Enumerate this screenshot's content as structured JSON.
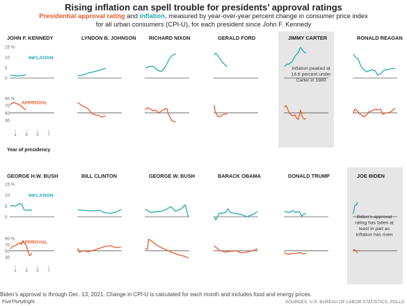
{
  "title": "Rising inflation can spell trouble for presidents’ approval ratings",
  "subtitle": {
    "approval_word": "Presidential approval rating",
    "and_word": " and ",
    "inflation_word": "inflation",
    "rest": ", measured by year-over-year percent change in consumer price index for all urban consumers (CPI-U), for each president since John F. Kennedy"
  },
  "labels": {
    "inflation": "INFLATION",
    "approval": "APPROVAL",
    "year_of_presidency": "Year of presidency",
    "carter_annotation": "Inflation peaked at 14.6 percent under Carter in 1980",
    "biden_annotation": "Biden’s approval rating has fallen at least in part as inflation has risen"
  },
  "footnote": "Biden’s approval is through Dec. 13, 2021. Change in CPI-U is calculated for each month and includes food and energy prices.",
  "source": "SOURCES: U.S. BUREAU OF LABOR STATISTICS, POLLS",
  "brand": "FiveThirtyEight",
  "colors": {
    "inflation": "#21a7b3",
    "approval": "#e8582b",
    "highlight": "#e6e6e6",
    "axis": "#555555"
  },
  "chart_data": {
    "type": "line",
    "inflation_axis": {
      "ticks": [
        0,
        5,
        10,
        15
      ],
      "tick_labels": [
        "0",
        "5",
        "10",
        "15 %"
      ],
      "ylim": [
        0,
        15
      ]
    },
    "approval_axis": {
      "ticks": [
        30,
        50,
        70,
        90
      ],
      "tick_labels": [
        "30",
        "50",
        "70",
        "90 %"
      ],
      "ylim": [
        25,
        92
      ],
      "reference_line": 50
    },
    "x_axis": {
      "ticks": [
        1,
        3,
        5,
        7
      ],
      "tick_labels": [
        "1",
        "3",
        "5",
        "7"
      ],
      "xlim": [
        0,
        8
      ],
      "label": "Year of presidency"
    },
    "presidents": [
      {
        "name": "JOHN F. KENNEDY",
        "highlight": false,
        "inflation": [
          [
            0.1,
            1.5
          ],
          [
            0.5,
            1.2
          ],
          [
            1,
            1.1
          ],
          [
            1.5,
            1.0
          ],
          [
            2,
            1.3
          ],
          [
            2.5,
            1.2
          ],
          [
            2.9,
            1.6
          ]
        ],
        "approval": [
          [
            0.1,
            72
          ],
          [
            0.4,
            77
          ],
          [
            0.8,
            78
          ],
          [
            1.2,
            76
          ],
          [
            1.6,
            73
          ],
          [
            2,
            70
          ],
          [
            2.4,
            64
          ],
          [
            2.7,
            60
          ],
          [
            2.9,
            58
          ]
        ]
      },
      {
        "name": "LYNDON B. JOHNSON",
        "highlight": false,
        "inflation": [
          [
            0.1,
            1.2
          ],
          [
            0.8,
            1.3
          ],
          [
            1.5,
            1.9
          ],
          [
            2.2,
            2.6
          ],
          [
            3,
            3.0
          ],
          [
            3.8,
            3.6
          ],
          [
            4.5,
            4.2
          ],
          [
            5.1,
            4.7
          ]
        ],
        "approval": [
          [
            0.1,
            78
          ],
          [
            0.5,
            74
          ],
          [
            1,
            68
          ],
          [
            1.5,
            66
          ],
          [
            2,
            60
          ],
          [
            2.5,
            50
          ],
          [
            3,
            46
          ],
          [
            3.5,
            44
          ],
          [
            4,
            42
          ],
          [
            4.5,
            38
          ],
          [
            4.8,
            40
          ],
          [
            5.1,
            42
          ]
        ]
      },
      {
        "name": "RICHARD NIXON",
        "highlight": false,
        "inflation": [
          [
            0.1,
            4.8
          ],
          [
            0.8,
            5.5
          ],
          [
            1.5,
            5.6
          ],
          [
            2,
            4.5
          ],
          [
            2.5,
            3.5
          ],
          [
            3,
            3.2
          ],
          [
            3.5,
            4.5
          ],
          [
            4,
            7
          ],
          [
            4.5,
            9.5
          ],
          [
            5,
            11
          ],
          [
            5.6,
            11.5
          ]
        ],
        "approval": [
          [
            0.1,
            59
          ],
          [
            0.5,
            64
          ],
          [
            1,
            61
          ],
          [
            1.5,
            56
          ],
          [
            2,
            57
          ],
          [
            2.5,
            50
          ],
          [
            3,
            55
          ],
          [
            3.5,
            60
          ],
          [
            4,
            62
          ],
          [
            4.2,
            48
          ],
          [
            4.5,
            40
          ],
          [
            4.8,
            30
          ],
          [
            5.2,
            26
          ],
          [
            5.6,
            25
          ]
        ]
      },
      {
        "name": "GERALD FORD",
        "highlight": false,
        "inflation": [
          [
            0.1,
            11
          ],
          [
            0.4,
            12
          ],
          [
            0.8,
            10.5
          ],
          [
            1.2,
            9
          ],
          [
            1.6,
            7.5
          ],
          [
            2,
            6.5
          ],
          [
            2.4,
            5.5
          ]
        ],
        "approval": [
          [
            0.1,
            71
          ],
          [
            0.3,
            52
          ],
          [
            0.5,
            48
          ],
          [
            0.8,
            40
          ],
          [
            1.2,
            40
          ],
          [
            1.6,
            45
          ],
          [
            2,
            46
          ],
          [
            2.4,
            48
          ]
        ]
      },
      {
        "name": "JIMMY CARTER",
        "highlight": true,
        "inflation": [
          [
            0.1,
            5.5
          ],
          [
            0.5,
            6.5
          ],
          [
            1,
            6.8
          ],
          [
            1.5,
            8
          ],
          [
            2,
            10.5
          ],
          [
            2.5,
            12
          ],
          [
            3,
            14.6
          ],
          [
            3.3,
            13.5
          ],
          [
            3.6,
            12.5
          ],
          [
            4,
            12
          ]
        ],
        "approval": [
          [
            0.1,
            66
          ],
          [
            0.4,
            70
          ],
          [
            0.7,
            60
          ],
          [
            1,
            50
          ],
          [
            1.3,
            44
          ],
          [
            1.6,
            42
          ],
          [
            2,
            45
          ],
          [
            2.3,
            35
          ],
          [
            2.6,
            32
          ],
          [
            3,
            58
          ],
          [
            3.3,
            40
          ],
          [
            3.6,
            33
          ],
          [
            4,
            34
          ]
        ]
      },
      {
        "name": "RONALD REAGAN",
        "highlight": false,
        "inflation": [
          [
            0.1,
            11.5
          ],
          [
            0.5,
            10
          ],
          [
            1,
            9
          ],
          [
            1.5,
            5.5
          ],
          [
            2,
            4
          ],
          [
            2.5,
            3
          ],
          [
            3,
            3.5
          ],
          [
            3.5,
            4
          ],
          [
            4,
            3.5
          ],
          [
            4.5,
            1.5
          ],
          [
            5,
            2
          ],
          [
            5.5,
            3.5
          ],
          [
            6,
            4
          ],
          [
            6.5,
            4.2
          ],
          [
            7,
            4.5
          ],
          [
            7.6,
            4.6
          ]
        ],
        "approval": [
          [
            0.1,
            51
          ],
          [
            0.4,
            60
          ],
          [
            0.8,
            56
          ],
          [
            1.2,
            48
          ],
          [
            1.6,
            44
          ],
          [
            2,
            39
          ],
          [
            2.4,
            44
          ],
          [
            2.8,
            52
          ],
          [
            3.2,
            54
          ],
          [
            3.6,
            57
          ],
          [
            4,
            60
          ],
          [
            4.4,
            58
          ],
          [
            5,
            60
          ],
          [
            5.4,
            46
          ],
          [
            6,
            50
          ],
          [
            6.6,
            51
          ],
          [
            7.1,
            56
          ],
          [
            7.6,
            63
          ]
        ]
      },
      {
        "name": "GEORGE H.W. BUSH",
        "highlight": false,
        "inflation": [
          [
            0.1,
            4.8
          ],
          [
            0.5,
            5.2
          ],
          [
            1,
            4.8
          ],
          [
            1.4,
            5.5
          ],
          [
            1.8,
            6.1
          ],
          [
            2.2,
            5.5
          ],
          [
            2.6,
            3.2
          ],
          [
            3,
            3.0
          ],
          [
            3.5,
            3.1
          ],
          [
            4,
            3.0
          ]
        ],
        "approval": [
          [
            0.1,
            56
          ],
          [
            0.5,
            64
          ],
          [
            1,
            67
          ],
          [
            1.5,
            72
          ],
          [
            1.9,
            76
          ],
          [
            2.1,
            70
          ],
          [
            2.3,
            82
          ],
          [
            2.6,
            76
          ],
          [
            3,
            65
          ],
          [
            3.3,
            46
          ],
          [
            3.6,
            34
          ],
          [
            3.9,
            40
          ],
          [
            4,
            42
          ]
        ]
      },
      {
        "name": "BILL CLINTON",
        "highlight": false,
        "inflation": [
          [
            0.1,
            3.2
          ],
          [
            1,
            3.0
          ],
          [
            2,
            2.7
          ],
          [
            3,
            2.7
          ],
          [
            4,
            3.0
          ],
          [
            5,
            1.8
          ],
          [
            6,
            1.6
          ],
          [
            7,
            2.2
          ],
          [
            7.9,
            3.4
          ]
        ],
        "approval": [
          [
            0.1,
            58
          ],
          [
            0.4,
            45
          ],
          [
            1,
            50
          ],
          [
            2,
            47
          ],
          [
            3,
            52
          ],
          [
            4,
            58
          ],
          [
            5,
            64
          ],
          [
            6,
            66
          ],
          [
            7,
            60
          ],
          [
            7.9,
            62
          ]
        ]
      },
      {
        "name": "GEORGE W. BUSH",
        "highlight": false,
        "inflation": [
          [
            0.1,
            3.5
          ],
          [
            1,
            2.0
          ],
          [
            2,
            2.3
          ],
          [
            3,
            2.5
          ],
          [
            4,
            3.5
          ],
          [
            4.7,
            4.7
          ],
          [
            5.5,
            2.5
          ],
          [
            6.5,
            3.5
          ],
          [
            7.3,
            5.5
          ],
          [
            7.7,
            1.0
          ],
          [
            7.9,
            0.1
          ]
        ],
        "approval": [
          [
            0.1,
            57
          ],
          [
            0.5,
            55
          ],
          [
            0.7,
            87
          ],
          [
            1,
            84
          ],
          [
            2,
            70
          ],
          [
            3,
            60
          ],
          [
            4,
            52
          ],
          [
            5,
            44
          ],
          [
            6,
            38
          ],
          [
            7,
            33
          ],
          [
            7.9,
            27
          ]
        ]
      },
      {
        "name": "BARACK OBAMA",
        "highlight": false,
        "inflation": [
          [
            0.1,
            0.0
          ],
          [
            0.4,
            -1.5
          ],
          [
            1,
            1.5
          ],
          [
            2,
            1.8
          ],
          [
            2.6,
            3.6
          ],
          [
            3,
            2.0
          ],
          [
            4,
            1.5
          ],
          [
            5,
            1.0
          ],
          [
            6,
            0.0
          ],
          [
            7,
            1.0
          ],
          [
            7.9,
            2.4
          ]
        ],
        "approval": [
          [
            0.1,
            66
          ],
          [
            0.5,
            60
          ],
          [
            1,
            52
          ],
          [
            2,
            46
          ],
          [
            3,
            48
          ],
          [
            4,
            50
          ],
          [
            5,
            43
          ],
          [
            6,
            46
          ],
          [
            7,
            50
          ],
          [
            7.9,
            57
          ]
        ]
      },
      {
        "name": "DONALD TRUMP",
        "highlight": false,
        "inflation": [
          [
            0.1,
            2.5
          ],
          [
            1,
            2.0
          ],
          [
            1.6,
            2.9
          ],
          [
            2,
            2.0
          ],
          [
            2.8,
            2.3
          ],
          [
            3.2,
            0.3
          ],
          [
            3.6,
            1.3
          ],
          [
            4,
            1.4
          ]
        ],
        "approval": [
          [
            0.1,
            45
          ],
          [
            0.5,
            40
          ],
          [
            1,
            39
          ],
          [
            1.5,
            42
          ],
          [
            2,
            41
          ],
          [
            2.5,
            43
          ],
          [
            3,
            44
          ],
          [
            3.5,
            40
          ],
          [
            4,
            42
          ]
        ]
      },
      {
        "name": "JOE BIDEN",
        "highlight": true,
        "inflation": [
          [
            0.05,
            1.4
          ],
          [
            0.2,
            2.6
          ],
          [
            0.35,
            5.0
          ],
          [
            0.5,
            5.4
          ],
          [
            0.65,
            5.3
          ],
          [
            0.8,
            6.2
          ],
          [
            0.9,
            6.8
          ]
        ],
        "approval": [
          [
            0.05,
            54
          ],
          [
            0.3,
            53
          ],
          [
            0.5,
            52
          ],
          [
            0.6,
            50
          ],
          [
            0.75,
            45
          ],
          [
            0.9,
            43
          ]
        ]
      }
    ]
  }
}
